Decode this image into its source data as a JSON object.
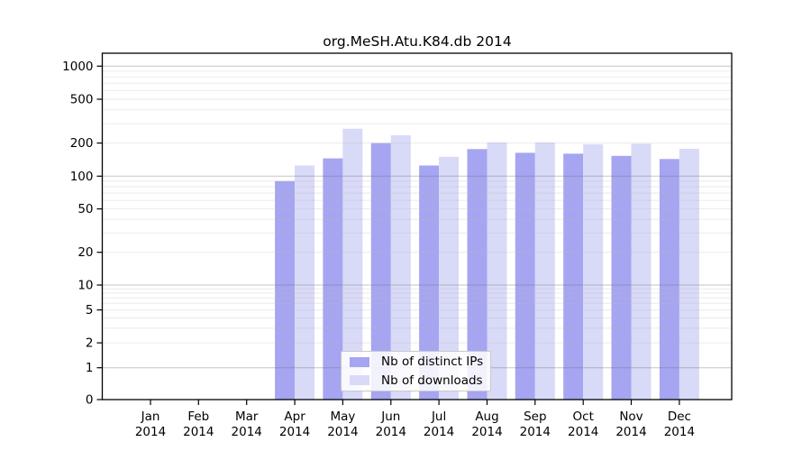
{
  "chart_data": {
    "type": "bar",
    "title": "org.MeSH.Atu.K84.db 2014",
    "categories": [
      "Jan",
      "Feb",
      "Mar",
      "Apr",
      "May",
      "Jun",
      "Jul",
      "Aug",
      "Sep",
      "Oct",
      "Nov",
      "Dec"
    ],
    "x_year": "2014",
    "series": [
      {
        "name": "Nb of distinct IPs",
        "color": "#a5a5f1",
        "values": [
          0,
          0,
          0,
          90,
          145,
          200,
          125,
          176,
          163,
          160,
          153,
          143
        ]
      },
      {
        "name": "Nb of downloads",
        "color": "#d9d9f8",
        "values": [
          0,
          0,
          0,
          125,
          270,
          235,
          150,
          203,
          203,
          195,
          197,
          177
        ]
      }
    ],
    "y_axis": {
      "scale": "log-with-zero",
      "ticks": [
        1000,
        500,
        200,
        100,
        50,
        20,
        10,
        5,
        2,
        1,
        0
      ],
      "ylim": [
        0,
        1300
      ]
    },
    "x_axis": {
      "label_lines": 2
    },
    "grid": {
      "major_at": [
        1,
        10,
        100,
        1000
      ],
      "minor_multiples": [
        2,
        3,
        4,
        5,
        6,
        7,
        8,
        9
      ]
    },
    "legend": {
      "position": "inside-bottom-center",
      "entries": [
        "Nb of distinct IPs",
        "Nb of downloads"
      ]
    },
    "colors": {
      "major_grid": "rgba(110,110,110,0.40)",
      "minor_grid": "rgba(185,185,185,0.30)",
      "axis": "#000000",
      "text": "#000000",
      "background": "#ffffff"
    }
  }
}
